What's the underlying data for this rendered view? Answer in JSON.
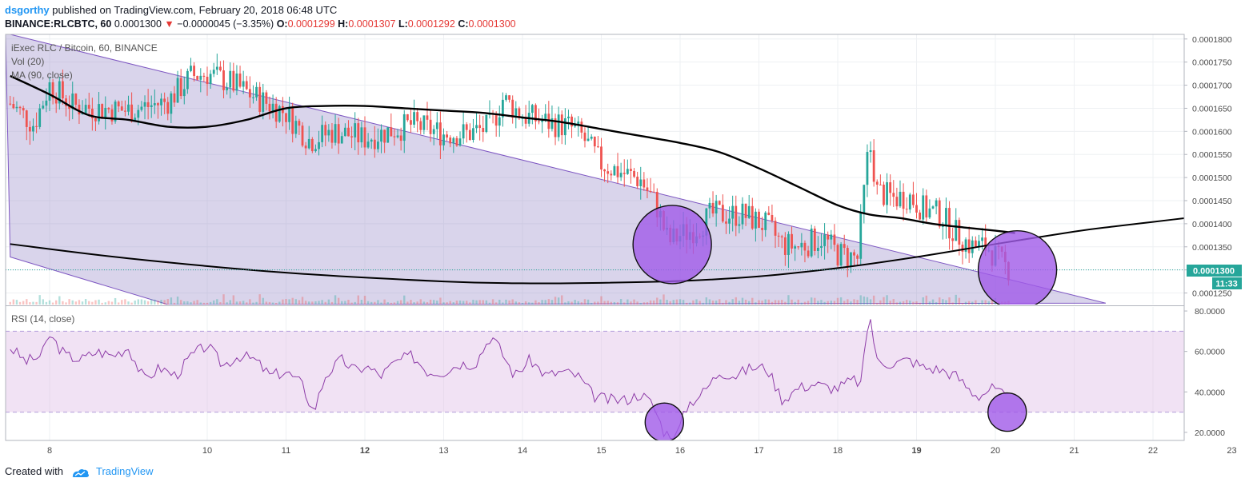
{
  "header": {
    "author": "dsgorthy",
    "published": "published on TradingView.com, February 20, 2018 06:48 UTC",
    "symbol": "BINANCE:RLCBTC, 60",
    "last": "0.0001300",
    "arrow": "▼",
    "change": "−0.0000045 (−3.35%)",
    "o_label": "O:",
    "o_value": "0.0001299",
    "h_label": "H:",
    "h_value": "0.0001307",
    "l_label": "L:",
    "l_value": "0.0001292",
    "c_label": "C:",
    "c_value": "0.0001300"
  },
  "legend": {
    "title": "iExec RLC / Bitcoin, 60, BINANCE",
    "vol": "Vol (20)",
    "ma": "MA (90, close)"
  },
  "rsi": {
    "label": "RSI (14, close)"
  },
  "price_tag": "0.0001300",
  "time_tag": "11:33",
  "footer": {
    "created": "Created with",
    "brand": "TradingView"
  },
  "colors": {
    "up": "#26a69a",
    "down": "#ef5350",
    "channel": "#9c8fcb",
    "circle": "#9c5ce0",
    "rsi_line": "#8e3da8"
  },
  "chart_data": [
    {
      "type": "candlestick",
      "title": "iExec RLC / Bitcoin, 60, BINANCE",
      "x_ticks": [
        "8",
        "10",
        "11",
        "12",
        "13",
        "14",
        "15",
        "16",
        "17",
        "18",
        "19",
        "20",
        "21",
        "22",
        "23"
      ],
      "y_ticks": [
        "0.0001800",
        "0.0001750",
        "0.0001700",
        "0.0001650",
        "0.0001600",
        "0.0001550",
        "0.0001500",
        "0.0001450",
        "0.0001400",
        "0.0001350",
        "0.0001300",
        "0.0001250"
      ],
      "ylim": [
        0.0001225,
        0.000181
      ],
      "close_series_approx": {
        "x": [
          7.5,
          7.8,
          8.0,
          8.3,
          8.6,
          9.0,
          9.5,
          9.8,
          10.0,
          10.3,
          10.6,
          11.0,
          11.3,
          11.6,
          12.0,
          12.3,
          12.6,
          13.0,
          13.3,
          13.6,
          13.75,
          14.0,
          14.3,
          14.6,
          14.75,
          15.0,
          15.2,
          15.5,
          15.7,
          15.85,
          16.0,
          16.2,
          16.4,
          16.8,
          17.1,
          17.3,
          17.5,
          17.8,
          18.0,
          18.25,
          18.4,
          18.5,
          18.7,
          18.9,
          19.1,
          19.3,
          19.5,
          19.7,
          19.9,
          20.1,
          20.2
        ],
        "y": [
          0.000166,
          0.0001615,
          0.00017,
          0.0001655,
          0.000165,
          0.0001645,
          0.0001665,
          0.000172,
          0.0001725,
          0.0001705,
          0.0001675,
          0.000164,
          0.000158,
          0.00016,
          0.0001585,
          0.00016,
          0.0001615,
          0.0001595,
          0.0001595,
          0.000161,
          0.000167,
          0.0001635,
          0.000162,
          0.000161,
          0.000159,
          0.000153,
          0.0001515,
          0.0001495,
          0.000144,
          0.000136,
          0.0001375,
          0.000139,
          0.000142,
          0.000142,
          0.0001395,
          0.0001355,
          0.000135,
          0.000137,
          0.0001335,
          0.0001325,
          0.000158,
          0.000147,
          0.0001455,
          0.000146,
          0.000143,
          0.000142,
          0.000138,
          0.000135,
          0.000135,
          0.000131,
          0.00013
        ]
      },
      "overlays": [
        {
          "name": "MA (90, close)",
          "x": [
            7.5,
            8.0,
            8.5,
            9.0,
            9.5,
            10.0,
            10.5,
            11.0,
            11.5,
            12.0,
            12.5,
            13.0,
            13.5,
            14.0,
            14.5,
            15.0,
            15.5,
            16.0,
            16.5,
            17.0,
            17.5,
            18.0,
            18.4,
            18.8,
            19.2,
            19.6,
            20.0,
            20.25
          ],
          "y": [
            0.000172,
            0.000168,
            0.0001635,
            0.0001625,
            0.000161,
            0.000161,
            0.0001625,
            0.000165,
            0.0001655,
            0.0001655,
            0.000165,
            0.0001645,
            0.000164,
            0.000163,
            0.000162,
            0.0001605,
            0.000159,
            0.0001575,
            0.0001555,
            0.000152,
            0.000148,
            0.000144,
            0.000142,
            0.0001412,
            0.00014,
            0.0001392,
            0.0001385,
            0.000138
          ]
        },
        {
          "name": "curve",
          "x": [
            7.5,
            9.0,
            11.0,
            13.0,
            14.0,
            15.0,
            16.0,
            17.0,
            18.0,
            19.0,
            20.0,
            21.0,
            21.5,
            22.0,
            22.5,
            23.0
          ],
          "y": [
            0.0001356,
            0.0001325,
            0.0001294,
            0.0001275,
            0.0001271,
            0.0001272,
            0.0001276,
            0.0001286,
            0.0001304,
            0.0001328,
            0.0001356,
            0.0001383,
            0.0001394,
            0.0001404,
            0.0001414,
            0.0001424
          ]
        },
        {
          "name": "channel",
          "type": "area",
          "upper": {
            "x": [
              7.5,
              21.4
            ],
            "y": [
              0.000181,
              0.0001228
            ]
          },
          "lower": {
            "x": [
              7.5,
              9.5
            ],
            "y": [
              0.0001328,
              0.0001225
            ]
          }
        }
      ],
      "annotations": [
        "circle near 15.9 at 0.0001355",
        "circle near 20.2 at 0.0001300"
      ]
    },
    {
      "type": "line",
      "name": "RSI (14, close)",
      "y_ticks": [
        "80.0000",
        "60.0000",
        "40.0000",
        "20.0000"
      ],
      "ylim": [
        16,
        82
      ],
      "bands": [
        30,
        70
      ],
      "x": [
        7.5,
        7.7,
        7.9,
        8.0,
        8.2,
        8.4,
        8.6,
        8.8,
        9.0,
        9.2,
        9.4,
        9.6,
        9.8,
        10.0,
        10.2,
        10.4,
        10.6,
        10.8,
        11.0,
        11.2,
        11.35,
        11.5,
        11.7,
        11.9,
        12.0,
        12.2,
        12.4,
        12.6,
        12.8,
        13.0,
        13.2,
        13.4,
        13.6,
        13.7,
        13.9,
        14.1,
        14.3,
        14.5,
        14.7,
        14.9,
        15.1,
        15.3,
        15.5,
        15.65,
        15.8,
        15.95,
        16.1,
        16.3,
        16.5,
        16.7,
        16.9,
        17.1,
        17.3,
        17.5,
        17.7,
        17.9,
        18.0,
        18.2,
        18.3,
        18.4,
        18.5,
        18.7,
        18.9,
        19.1,
        19.3,
        19.5,
        19.7,
        19.8,
        19.95,
        20.1,
        20.2
      ],
      "values": [
        62,
        55,
        58,
        68,
        58,
        56,
        60,
        58,
        62,
        46,
        52,
        48,
        58,
        63,
        53,
        58,
        56,
        48,
        50,
        44,
        30,
        48,
        56,
        50,
        53,
        48,
        55,
        58,
        50,
        50,
        54,
        54,
        68,
        62,
        48,
        56,
        48,
        50,
        48,
        38,
        36,
        36,
        39,
        34,
        20,
        18,
        34,
        40,
        50,
        48,
        52,
        52,
        36,
        42,
        44,
        42,
        42,
        46,
        44,
        80,
        55,
        54,
        56,
        52,
        51,
        48,
        40,
        38,
        42,
        38,
        36
      ]
    }
  ]
}
